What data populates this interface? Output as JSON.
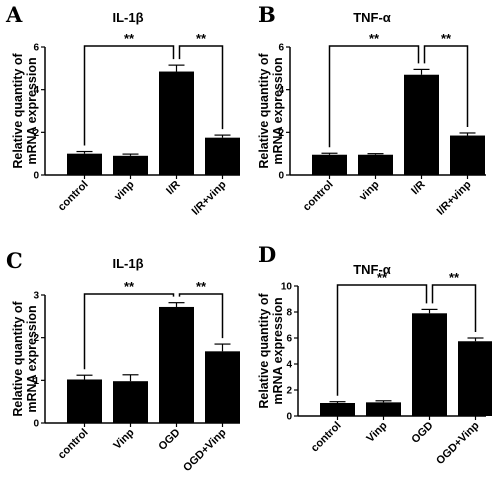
{
  "chart_data": [
    {
      "type": "bar",
      "panel": "A",
      "title": "IL-1β",
      "ylabel": [
        "Relative quantity of",
        "mRNA expression"
      ],
      "categories": [
        "control",
        "vinp",
        "I/R",
        "I/R+vinp"
      ],
      "values": [
        1.0,
        0.9,
        4.85,
        1.75
      ],
      "errors": [
        0.1,
        0.08,
        0.3,
        0.12
      ],
      "ylim": [
        0,
        6
      ],
      "yticks": [
        "0",
        "2",
        "4",
        "6"
      ],
      "significance": [
        {
          "from": "control",
          "to": "I/R",
          "label": "**"
        },
        {
          "from": "I/R",
          "to": "I/R+vinp",
          "label": "**"
        }
      ]
    },
    {
      "type": "bar",
      "panel": "B",
      "title": "TNF-α",
      "ylabel": [
        "Relative quantity of",
        "mRNA expression"
      ],
      "categories": [
        "control",
        "vinp",
        "I/R",
        "I/R+vinp"
      ],
      "values": [
        0.95,
        0.95,
        4.7,
        1.85
      ],
      "errors": [
        0.07,
        0.05,
        0.25,
        0.12
      ],
      "ylim": [
        0,
        6
      ],
      "yticks": [
        "0",
        "2",
        "4",
        "6"
      ],
      "significance": [
        {
          "from": "control",
          "to": "I/R",
          "label": "**"
        },
        {
          "from": "I/R",
          "to": "I/R+vinp",
          "label": "**"
        }
      ]
    },
    {
      "type": "bar",
      "panel": "C",
      "title": "IL-1β",
      "ylabel": [
        "Relative quantity of",
        "mRNA expression"
      ],
      "categories": [
        "control",
        "Vinp",
        "OGD",
        "OGD+Vinp"
      ],
      "values": [
        1.02,
        0.98,
        2.72,
        1.68
      ],
      "errors": [
        0.1,
        0.15,
        0.1,
        0.17
      ],
      "ylim": [
        0,
        3
      ],
      "yticks": [
        "0",
        "1",
        "2",
        "3"
      ],
      "significance": [
        {
          "from": "control",
          "to": "OGD",
          "label": "**"
        },
        {
          "from": "OGD",
          "to": "OGD+Vinp",
          "label": "**"
        }
      ]
    },
    {
      "type": "bar",
      "panel": "D",
      "title": "TNF-α",
      "ylabel": [
        "Relative quantity of",
        "mRNA expression"
      ],
      "categories": [
        "control",
        "Vinp",
        "OGD",
        "OGD+Vinp"
      ],
      "values": [
        1.0,
        1.05,
        7.9,
        5.75
      ],
      "errors": [
        0.1,
        0.12,
        0.3,
        0.25
      ],
      "ylim": [
        0,
        10
      ],
      "yticks": [
        "0",
        "2",
        "4",
        "6",
        "8",
        "10"
      ],
      "significance": [
        {
          "from": "control",
          "to": "OGD",
          "label": "**"
        },
        {
          "from": "OGD",
          "to": "OGD+Vinp",
          "label": "**"
        }
      ]
    }
  ]
}
